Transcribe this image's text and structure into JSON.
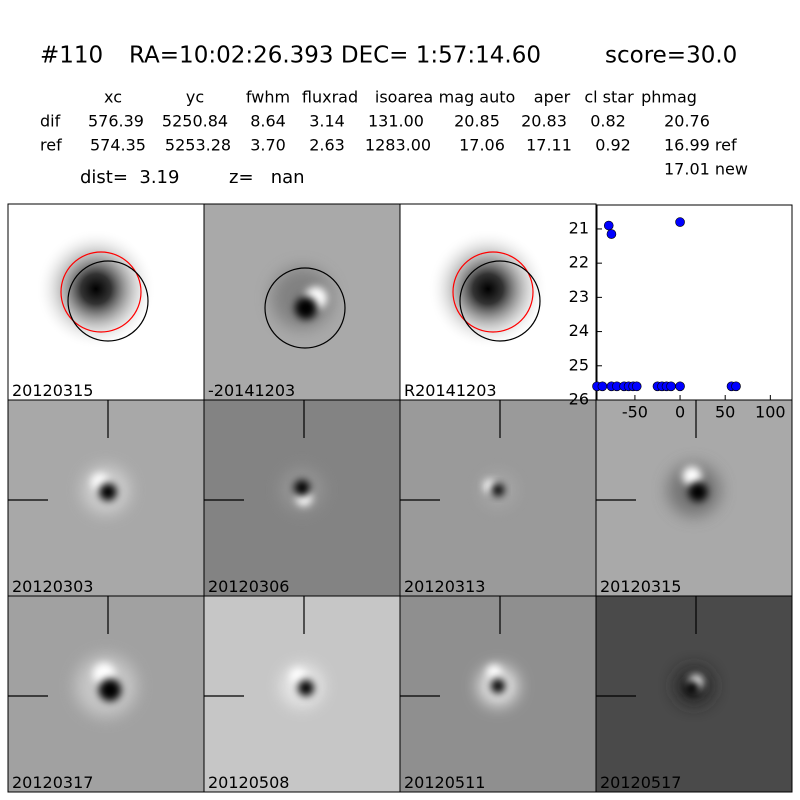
{
  "header": {
    "id": "#110",
    "coords": "RA=10:02:26.393 DEC= 1:57:14.60",
    "score": "score=30.0"
  },
  "table": {
    "columns": [
      "xc",
      "yc",
      "fwhm",
      "fluxrad",
      "isoarea",
      "mag auto",
      "aper",
      "cl star",
      "phmag"
    ],
    "rows": [
      [
        "dif",
        "576.39",
        "5250.84",
        "8.64",
        "3.14",
        "131.00",
        "20.85",
        "20.83",
        "0.82",
        "20.76"
      ],
      [
        "ref",
        "574.35",
        "5253.28",
        "3.70",
        "2.63",
        "1283.00",
        "17.06",
        "17.11",
        "0.92",
        "16.99 ref"
      ]
    ],
    "extra": "17.01 new",
    "dist": "dist=  3.19",
    "z": "z=   nan"
  },
  "panels": [
    {
      "label": "20120315"
    },
    {
      "label": "-20141203"
    },
    {
      "label": "R20141203"
    },
    {
      "label": "20120303"
    },
    {
      "label": "20120306"
    },
    {
      "label": "20120313"
    },
    {
      "label": "20120315",
      "label_color": "#ff0000"
    },
    {
      "label": "20120317"
    },
    {
      "label": "20120508"
    },
    {
      "label": "20120511"
    },
    {
      "label": "20120517"
    }
  ],
  "chart_data": {
    "type": "scatter",
    "color": "#0000ff",
    "x": [
      -79,
      -76,
      0,
      -92,
      -86,
      -76,
      -70,
      -62,
      -57,
      -52,
      -48,
      -25,
      -20,
      -15,
      -10,
      0,
      57,
      62
    ],
    "values": [
      20.9,
      21.15,
      20.8,
      25.6,
      25.6,
      25.6,
      25.6,
      25.6,
      25.6,
      25.6,
      25.6,
      25.6,
      25.6,
      25.6,
      25.6,
      25.6,
      25.6,
      25.6
    ],
    "xlim": [
      -92,
      124
    ],
    "xticks": [
      -50,
      0,
      50,
      100
    ],
    "ylim": [
      20.3,
      26
    ],
    "yticks": [
      21,
      22,
      23,
      24,
      25,
      26
    ],
    "y_inverted": true
  }
}
